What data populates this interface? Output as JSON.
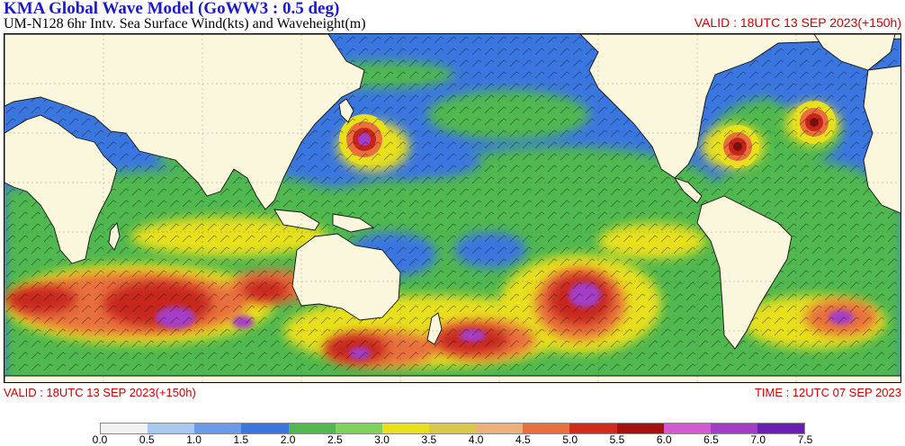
{
  "header": {
    "title": "KMA  Global Wave Model (GoWW3 : 0.5 deg)",
    "subtitle": "UM-N128  6hr Intv. Sea Surface Wind(kts) and Waveheight(m)",
    "valid_top": "VALID : 18UTC 13 SEP 2023(+150h)"
  },
  "footer": {
    "valid": "VALID : 18UTC 13 SEP 2023(+150h)",
    "time": "TIME : 12UTC 07 SEP 2023"
  },
  "map": {
    "land_color": "#fbf7dc",
    "ocean_base_color": "#3a76e0"
  },
  "colorbar": {
    "labels": [
      "0.0",
      "0.5",
      "1.0",
      "1.5",
      "2.0",
      "2.5",
      "3.0",
      "3.5",
      "4.0",
      "4.5",
      "5.0",
      "5.5",
      "6.0",
      "6.5",
      "7.0",
      "7.5"
    ],
    "colors": [
      "#f2f2f2",
      "#a9c8ef",
      "#6b9ae8",
      "#3a76e0",
      "#4fb84f",
      "#7ed45a",
      "#e8e01c",
      "#d9c84a",
      "#efb07a",
      "#e9703c",
      "#d42a1a",
      "#a50f0f",
      "#d25ad2",
      "#a43cc8",
      "#6a1eb4"
    ]
  }
}
